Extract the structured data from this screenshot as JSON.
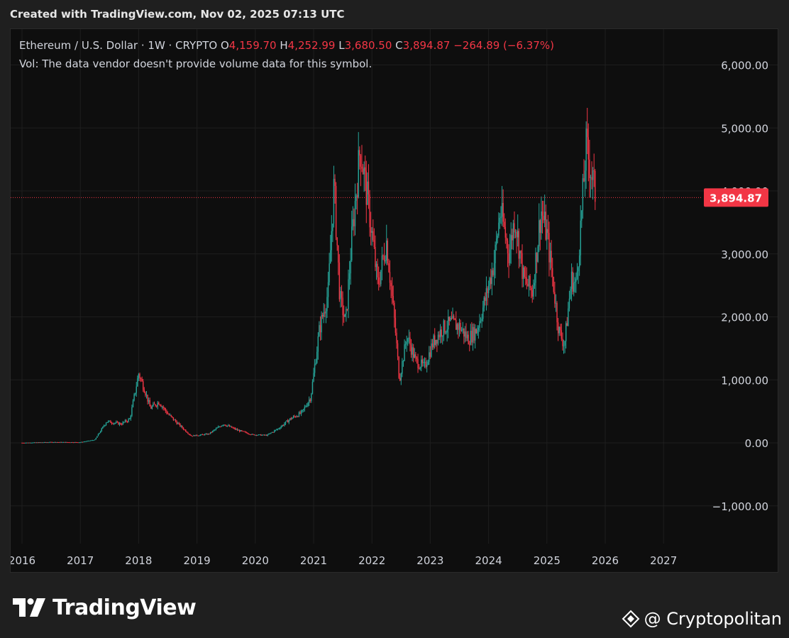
{
  "caption": "Created with TradingView.com, Nov 02, 2025 07:13 UTC",
  "legend": {
    "symbol": "Ethereum / U.S. Dollar · 1W · CRYPTO",
    "o_label": "O",
    "o_value": "4,159.70",
    "h_label": "H",
    "h_value": "4,252.99",
    "l_label": "L",
    "l_value": "3,680.50",
    "c_label": "C",
    "c_value": "3,894.87",
    "change": "−264.89 (−6.37%)",
    "volume_note": "Vol: The data vendor doesn't provide volume data for this symbol."
  },
  "price_tag": "3,894.87",
  "colors": {
    "up": "#26a69a",
    "down": "#f23645",
    "background": "#0e0e0e",
    "grid": "#1e1e1e",
    "axis_text": "#d1d4dc",
    "price_line": "#f23645"
  },
  "footer": {
    "brand": "TradingView",
    "brand_icon": "tradingview-logo-icon",
    "watermark": "@ Cryptopolitan",
    "watermark_icon": "binance-diamond-icon"
  },
  "chart_data": {
    "type": "candlestick",
    "interval": "1W",
    "x_ticks": [
      "2016",
      "2017",
      "2018",
      "2019",
      "2020",
      "2021",
      "2022",
      "2023",
      "2024",
      "2025",
      "2026",
      "2027"
    ],
    "y_ticks": [
      "6,000.00",
      "5,000.00",
      "4,000.00",
      "3,000.00",
      "2,000.00",
      "1,000.00",
      "0.00",
      "−1,000.00"
    ],
    "y_tick_values": [
      6000,
      5000,
      4000,
      3000,
      2000,
      1000,
      0,
      -1000
    ],
    "ylim": [
      -1650,
      6350
    ],
    "xlim": [
      2015.8,
      2028.6
    ],
    "last_close": 3894.87,
    "price_path": [
      [
        2016.0,
        1
      ],
      [
        2016.5,
        12
      ],
      [
        2017.0,
        10
      ],
      [
        2017.25,
        50
      ],
      [
        2017.45,
        340
      ],
      [
        2017.7,
        300
      ],
      [
        2017.85,
        380
      ],
      [
        2018.0,
        1100
      ],
      [
        2018.1,
        850
      ],
      [
        2018.2,
        550
      ],
      [
        2018.35,
        650
      ],
      [
        2018.5,
        460
      ],
      [
        2018.7,
        280
      ],
      [
        2018.9,
        110
      ],
      [
        2019.2,
        140
      ],
      [
        2019.45,
        300
      ],
      [
        2019.7,
        200
      ],
      [
        2019.95,
        130
      ],
      [
        2020.2,
        120
      ],
      [
        2020.4,
        230
      ],
      [
        2020.6,
        380
      ],
      [
        2020.8,
        480
      ],
      [
        2020.95,
        730
      ],
      [
        2021.1,
        1800
      ],
      [
        2021.25,
        2400
      ],
      [
        2021.35,
        4100
      ],
      [
        2021.45,
        2300
      ],
      [
        2021.55,
        1900
      ],
      [
        2021.65,
        3200
      ],
      [
        2021.8,
        4700
      ],
      [
        2021.95,
        3700
      ],
      [
        2022.1,
        2500
      ],
      [
        2022.25,
        3200
      ],
      [
        2022.4,
        1800
      ],
      [
        2022.47,
        1000
      ],
      [
        2022.6,
        1700
      ],
      [
        2022.75,
        1300
      ],
      [
        2022.9,
        1200
      ],
      [
        2023.05,
        1600
      ],
      [
        2023.2,
        1800
      ],
      [
        2023.35,
        1900
      ],
      [
        2023.5,
        1850
      ],
      [
        2023.65,
        1650
      ],
      [
        2023.8,
        1800
      ],
      [
        2023.95,
        2300
      ],
      [
        2024.1,
        2900
      ],
      [
        2024.2,
        3700
      ],
      [
        2024.35,
        3000
      ],
      [
        2024.45,
        3600
      ],
      [
        2024.6,
        2600
      ],
      [
        2024.75,
        2400
      ],
      [
        2024.9,
        3700
      ],
      [
        2025.0,
        3300
      ],
      [
        2025.1,
        2600
      ],
      [
        2025.2,
        1800
      ],
      [
        2025.3,
        1550
      ],
      [
        2025.42,
        2600
      ],
      [
        2025.5,
        2500
      ],
      [
        2025.6,
        3700
      ],
      [
        2025.67,
        4700
      ],
      [
        2025.73,
        4450
      ],
      [
        2025.8,
        4100
      ],
      [
        2025.84,
        3895
      ]
    ]
  }
}
